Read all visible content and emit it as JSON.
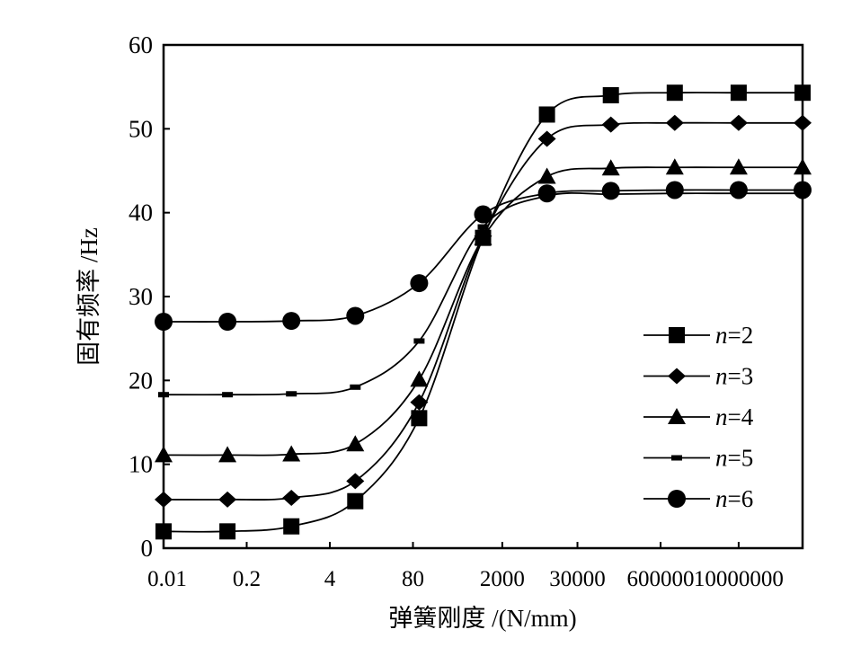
{
  "chart_data": {
    "type": "line",
    "title": "",
    "xlabel": "弹簧刚度 /(N/mm)",
    "ylabel": "固有频率 /Hz",
    "xscale": "log",
    "xlim": [
      0.01,
      100000000
    ],
    "ylim": [
      0,
      60
    ],
    "yticks": [
      0,
      10,
      20,
      30,
      40,
      50,
      60
    ],
    "xticks": [
      0.01,
      0.2,
      4,
      80,
      2000,
      30000,
      600000,
      10000000
    ],
    "xtick_labels": [
      "0.01",
      "0.2",
      "4",
      "80",
      "2000",
      "30000",
      "600000",
      "10000000"
    ],
    "grid": false,
    "legend_position": "right",
    "x": [
      0.01,
      0.1,
      1,
      10,
      100,
      1000,
      10000,
      100000,
      1000000,
      10000000,
      100000000
    ],
    "series": [
      {
        "name": "n=2",
        "label_var": "n",
        "label_val": "=2",
        "marker": "square",
        "values": [
          2.0,
          2.0,
          2.6,
          5.6,
          15.5,
          37.0,
          51.7,
          54.0,
          54.3,
          54.3,
          54.3
        ]
      },
      {
        "name": "n=3",
        "label_var": "n",
        "label_val": "=3",
        "marker": "diamond",
        "values": [
          5.8,
          5.8,
          6.0,
          8.0,
          17.4,
          37.2,
          48.8,
          50.5,
          50.7,
          50.7,
          50.7
        ]
      },
      {
        "name": "n=4",
        "label_var": "n",
        "label_val": "=4",
        "marker": "triangle",
        "values": [
          11.1,
          11.1,
          11.2,
          12.4,
          20.1,
          37.0,
          44.3,
          45.3,
          45.4,
          45.4,
          45.4
        ]
      },
      {
        "name": "n=5",
        "label_var": "n",
        "label_val": "=5",
        "marker": "dash",
        "values": [
          18.3,
          18.3,
          18.4,
          19.2,
          24.7,
          38.3,
          42.0,
          42.2,
          42.3,
          42.3,
          42.3
        ]
      },
      {
        "name": "n=6",
        "label_var": "n",
        "label_val": "=6",
        "marker": "circle",
        "values": [
          27.0,
          27.0,
          27.1,
          27.7,
          31.6,
          39.8,
          42.3,
          42.6,
          42.7,
          42.7,
          42.7
        ]
      }
    ]
  }
}
